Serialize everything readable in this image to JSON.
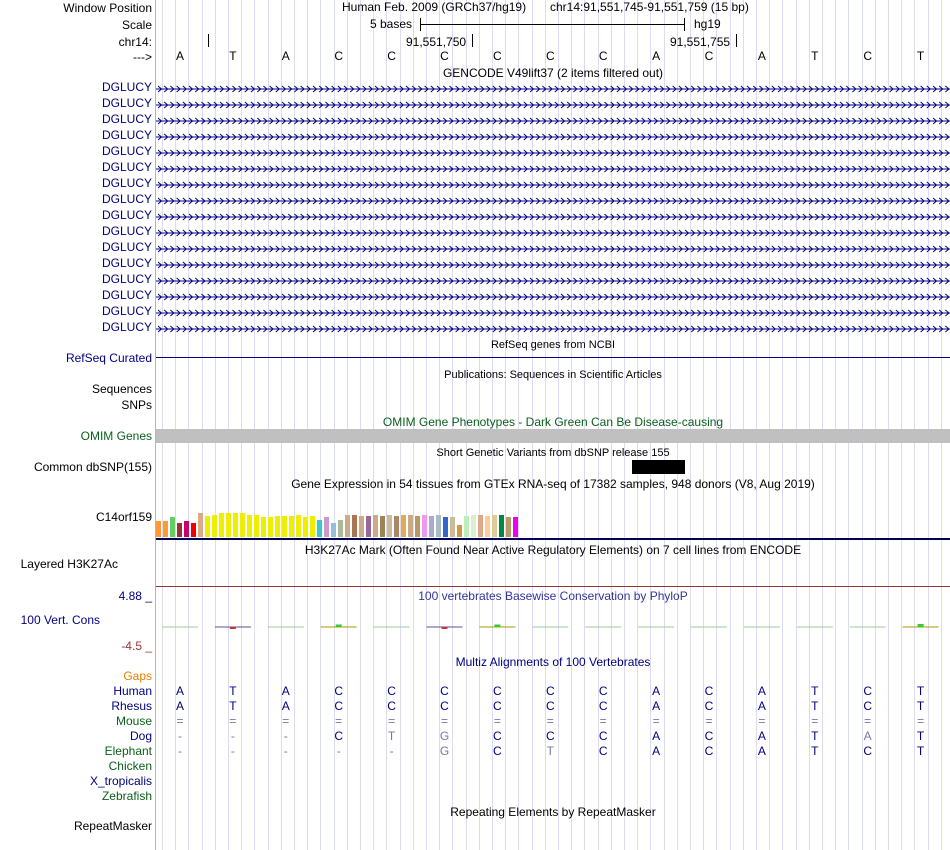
{
  "labels": {
    "window_position": "Window Position",
    "scale": "Scale",
    "chr": "chr14:",
    "strand": "--->",
    "gencode_items": [
      "DGLUCY",
      "DGLUCY",
      "DGLUCY",
      "DGLUCY",
      "DGLUCY",
      "DGLUCY",
      "DGLUCY",
      "DGLUCY",
      "DGLUCY",
      "DGLUCY",
      "DGLUCY",
      "DGLUCY",
      "DGLUCY",
      "DGLUCY",
      "DGLUCY",
      "DGLUCY"
    ],
    "refseq": "RefSeq Curated",
    "sequences": "Sequences",
    "snps": "SNPs",
    "omim": "OMIM Genes",
    "dbsnp": "Common dbSNP(155)",
    "gtex_gene": "C14orf159",
    "h3k27ac": "Layered H3K27Ac",
    "cons_max": "4.88 _",
    "cons_label": "100 Vert. Cons",
    "cons_min": "-4.5 _",
    "gaps": "Gaps",
    "species": [
      "Human",
      "Rhesus",
      "Mouse",
      "Dog",
      "Elephant",
      "Chicken",
      "X_tropicalis",
      "Zebrafish"
    ],
    "repeatmasker": "RepeatMasker"
  },
  "header": {
    "assembly": "Human Feb. 2009 (GRCh37/hg19)",
    "position": "chr14:91,551,745-91,551,759 (15 bp)",
    "scale_text": "5 bases",
    "scale_db": "hg19",
    "coord1": "91,551,750",
    "coord2": "91,551,755"
  },
  "sequence": [
    "A",
    "T",
    "A",
    "C",
    "C",
    "C",
    "C",
    "C",
    "C",
    "A",
    "C",
    "A",
    "T",
    "C",
    "T"
  ],
  "tracks": {
    "gencode_title": "GENCODE V49lift37 (2 items filtered out)",
    "refseq_title": "RefSeq genes from NCBI",
    "pubs_title": "Publications: Sequences in Scientific Articles",
    "omim_title": "OMIM Gene Phenotypes - Dark Green Can Be Disease-causing",
    "snp_title": "Short Genetic Variants from dbSNP release 155",
    "gtex_title": "Gene Expression in 54 tissues from GTEx RNA-seq of 17382 samples, 948 donors (V8, Aug 2019)",
    "h3k27ac_title": "H3K27Ac Mark (Often Found Near Active Regulatory Elements) on 7 cell lines from ENCODE",
    "phylop_title": "100 vertebrates Basewise Conservation by PhyloP",
    "multiz_title": "Multiz Alignments of 100 Vertebrates",
    "rmsk_title": "Repeating Elements by RepeatMasker"
  },
  "alignment": {
    "Human": [
      "A",
      "T",
      "A",
      "C",
      "C",
      "C",
      "C",
      "C",
      "C",
      "A",
      "C",
      "A",
      "T",
      "C",
      "T"
    ],
    "Rhesus": [
      "A",
      "T",
      "A",
      "C",
      "C",
      "C",
      "C",
      "C",
      "C",
      "A",
      "C",
      "A",
      "T",
      "C",
      "T"
    ],
    "Mouse": [
      "=",
      "=",
      "=",
      "=",
      "=",
      "=",
      "=",
      "=",
      "=",
      "=",
      "=",
      "=",
      "=",
      "=",
      "="
    ],
    "Dog": [
      "-",
      "-",
      "-",
      "C",
      "T",
      "G",
      "C",
      "C",
      "C",
      "A",
      "C",
      "A",
      "T",
      "A",
      "T"
    ],
    "Elephant": [
      "-",
      "-",
      "-",
      "-",
      "-",
      "G",
      "C",
      "T",
      "C",
      "A",
      "C",
      "A",
      "T",
      "C",
      "T"
    ]
  },
  "gtex_colors": [
    "#ff9933",
    "#ff9933",
    "#66cc66",
    "#993333",
    "#cc0066",
    "#ee0000",
    "#ddaa88",
    "#eeee00",
    "#eeee00",
    "#eeee00",
    "#eeee00",
    "#eeee00",
    "#eeee00",
    "#eeee00",
    "#eeee00",
    "#eeee00",
    "#eeee00",
    "#eeee00",
    "#eeee00",
    "#eeee00",
    "#eeee00",
    "#eeee00",
    "#eeee00",
    "#33cccc",
    "#cc99cc",
    "#99bbdd",
    "#aabb99",
    "#ccaa88",
    "#aa7755",
    "#ccaa88",
    "#996699",
    "#ccaa88",
    "#998855",
    "#ccbb99",
    "#aa8866",
    "#ddaa55",
    "#ccaa88",
    "#bb9966",
    "#ee99ee",
    "#aaaacc",
    "#aabbcc",
    "#3366cc",
    "#ccbb99",
    "#cc9944",
    "#bbeebb",
    "#ddeecc",
    "#ddaa88",
    "#ffcc99",
    "#ddcc99",
    "#008844",
    "#bb9966",
    "#ee00ee"
  ],
  "gtex_heights": [
    0.35,
    0.35,
    0.42,
    0.3,
    0.35,
    0.3,
    0.5,
    0.45,
    0.47,
    0.5,
    0.5,
    0.52,
    0.52,
    0.47,
    0.47,
    0.42,
    0.42,
    0.45,
    0.45,
    0.45,
    0.47,
    0.42,
    0.45,
    0.37,
    0.42,
    0.3,
    0.37,
    0.47,
    0.47,
    0.45,
    0.45,
    0.47,
    0.45,
    0.47,
    0.45,
    0.47,
    0.47,
    0.45,
    0.47,
    0.45,
    0.47,
    0.42,
    0.42,
    0.25,
    0.45,
    0.47,
    0.47,
    0.45,
    0.47,
    0.47,
    0.42,
    0.42
  ],
  "phylop": [
    0,
    -0.3,
    0,
    0.5,
    0,
    -0.3,
    0.5,
    0.05,
    0.05,
    -0.05,
    0,
    0,
    0.02,
    0,
    0.6
  ],
  "colors": {
    "navy": "#000080",
    "green_label": "#0a5f1a",
    "omim_bar": "#c0c0c0",
    "snp_black": "#000000",
    "gaps": "#e08000",
    "phylop_pos": "#33cc33"
  }
}
